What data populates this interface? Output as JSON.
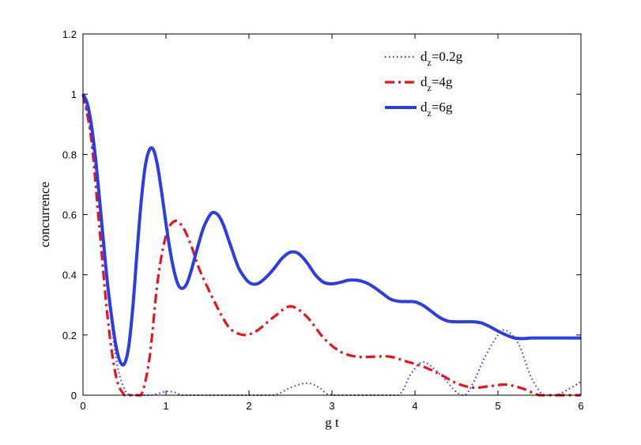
{
  "chart_data": {
    "type": "line",
    "title": "",
    "xlabel": "g t",
    "ylabel": "concurrence",
    "xlim": [
      0,
      6
    ],
    "ylim": [
      0,
      1.2
    ],
    "xticks": [
      "0",
      "1",
      "2",
      "3",
      "4",
      "5",
      "6"
    ],
    "yticks": [
      "0",
      "0.2",
      "0.4",
      "0.6",
      "0.8",
      "1",
      "1.2"
    ],
    "grid": false,
    "legend_position": "top-right",
    "series": [
      {
        "name_main": "d",
        "name_sub": "z",
        "name_rest": "=0.2g",
        "color": "#3030e8",
        "style": "dotted",
        "x": [
          0,
          0.1,
          0.2,
          0.3,
          0.4,
          0.5,
          0.6,
          0.8,
          0.9,
          1.0,
          1.1,
          1.2,
          1.4,
          2.0,
          2.3,
          2.5,
          2.7,
          2.85,
          3.0,
          3.5,
          3.8,
          3.95,
          4.1,
          4.3,
          4.5,
          4.6,
          4.7,
          4.85,
          5.0,
          5.1,
          5.25,
          5.4,
          5.55,
          5.7,
          5.85,
          6.0
        ],
        "y": [
          1.0,
          0.86,
          0.62,
          0.35,
          0.12,
          0.02,
          0.0,
          0.0,
          0.005,
          0.012,
          0.01,
          0.0,
          0.0,
          0.0,
          0.0,
          0.025,
          0.04,
          0.025,
          0.0,
          0.0,
          0.0,
          0.07,
          0.11,
          0.07,
          0.01,
          0.0,
          0.04,
          0.13,
          0.2,
          0.215,
          0.17,
          0.06,
          0.0,
          0.0,
          0.02,
          0.045
        ]
      },
      {
        "name_main": "d",
        "name_sub": "z",
        "name_rest": "=4g",
        "color": "#e8141c",
        "style": "dashdot",
        "x": [
          0,
          0.1,
          0.2,
          0.3,
          0.4,
          0.5,
          0.55,
          0.6,
          0.7,
          0.8,
          0.9,
          1.0,
          1.1,
          1.2,
          1.3,
          1.4,
          1.55,
          1.7,
          1.8,
          1.95,
          2.1,
          2.3,
          2.5,
          2.7,
          2.9,
          3.1,
          3.3,
          3.5,
          3.7,
          3.9,
          4.1,
          4.3,
          4.5,
          4.7,
          4.9,
          5.1,
          5.3,
          5.5,
          5.7,
          6.0
        ],
        "y": [
          1.0,
          0.85,
          0.55,
          0.25,
          0.06,
          0.0,
          0.0,
          0.0,
          0.0,
          0.12,
          0.38,
          0.53,
          0.578,
          0.56,
          0.5,
          0.42,
          0.33,
          0.25,
          0.215,
          0.2,
          0.215,
          0.26,
          0.295,
          0.26,
          0.19,
          0.145,
          0.128,
          0.128,
          0.128,
          0.112,
          0.095,
          0.07,
          0.04,
          0.025,
          0.03,
          0.035,
          0.022,
          0.0,
          0.0,
          0.0
        ]
      },
      {
        "name_main": "d",
        "name_sub": "z",
        "name_rest": "=6g",
        "color": "#2c3ce6",
        "style": "solid",
        "x": [
          0,
          0.05,
          0.1,
          0.15,
          0.2,
          0.25,
          0.3,
          0.35,
          0.4,
          0.45,
          0.5,
          0.55,
          0.6,
          0.65,
          0.7,
          0.75,
          0.8,
          0.85,
          0.9,
          0.95,
          1.0,
          1.05,
          1.1,
          1.15,
          1.2,
          1.25,
          1.3,
          1.35,
          1.4,
          1.45,
          1.5,
          1.55,
          1.6,
          1.65,
          1.7,
          1.75,
          1.8,
          1.85,
          1.9,
          2.0,
          2.1,
          2.2,
          2.3,
          2.4,
          2.5,
          2.6,
          2.7,
          2.8,
          2.9,
          3.0,
          3.1,
          3.2,
          3.3,
          3.4,
          3.5,
          3.6,
          3.7,
          3.8,
          3.9,
          4.0,
          4.1,
          4.2,
          4.3,
          4.4,
          4.5,
          4.6,
          4.7,
          4.8,
          4.9,
          5.0,
          5.1,
          5.2,
          5.3,
          5.4,
          5.5,
          5.6,
          5.7,
          5.8,
          5.9,
          6.0
        ],
        "y": [
          1.0,
          0.97,
          0.9,
          0.79,
          0.65,
          0.5,
          0.36,
          0.25,
          0.16,
          0.11,
          0.105,
          0.16,
          0.29,
          0.47,
          0.64,
          0.76,
          0.815,
          0.815,
          0.76,
          0.67,
          0.57,
          0.48,
          0.41,
          0.365,
          0.355,
          0.37,
          0.41,
          0.46,
          0.51,
          0.555,
          0.585,
          0.605,
          0.605,
          0.59,
          0.56,
          0.52,
          0.48,
          0.44,
          0.41,
          0.375,
          0.37,
          0.39,
          0.42,
          0.455,
          0.475,
          0.47,
          0.44,
          0.4,
          0.375,
          0.37,
          0.375,
          0.382,
          0.382,
          0.375,
          0.36,
          0.34,
          0.32,
          0.312,
          0.311,
          0.31,
          0.298,
          0.278,
          0.258,
          0.246,
          0.244,
          0.244,
          0.244,
          0.24,
          0.228,
          0.213,
          0.2,
          0.19,
          0.188,
          0.19,
          0.19,
          0.19,
          0.19,
          0.19,
          0.19,
          0.19
        ]
      }
    ]
  }
}
